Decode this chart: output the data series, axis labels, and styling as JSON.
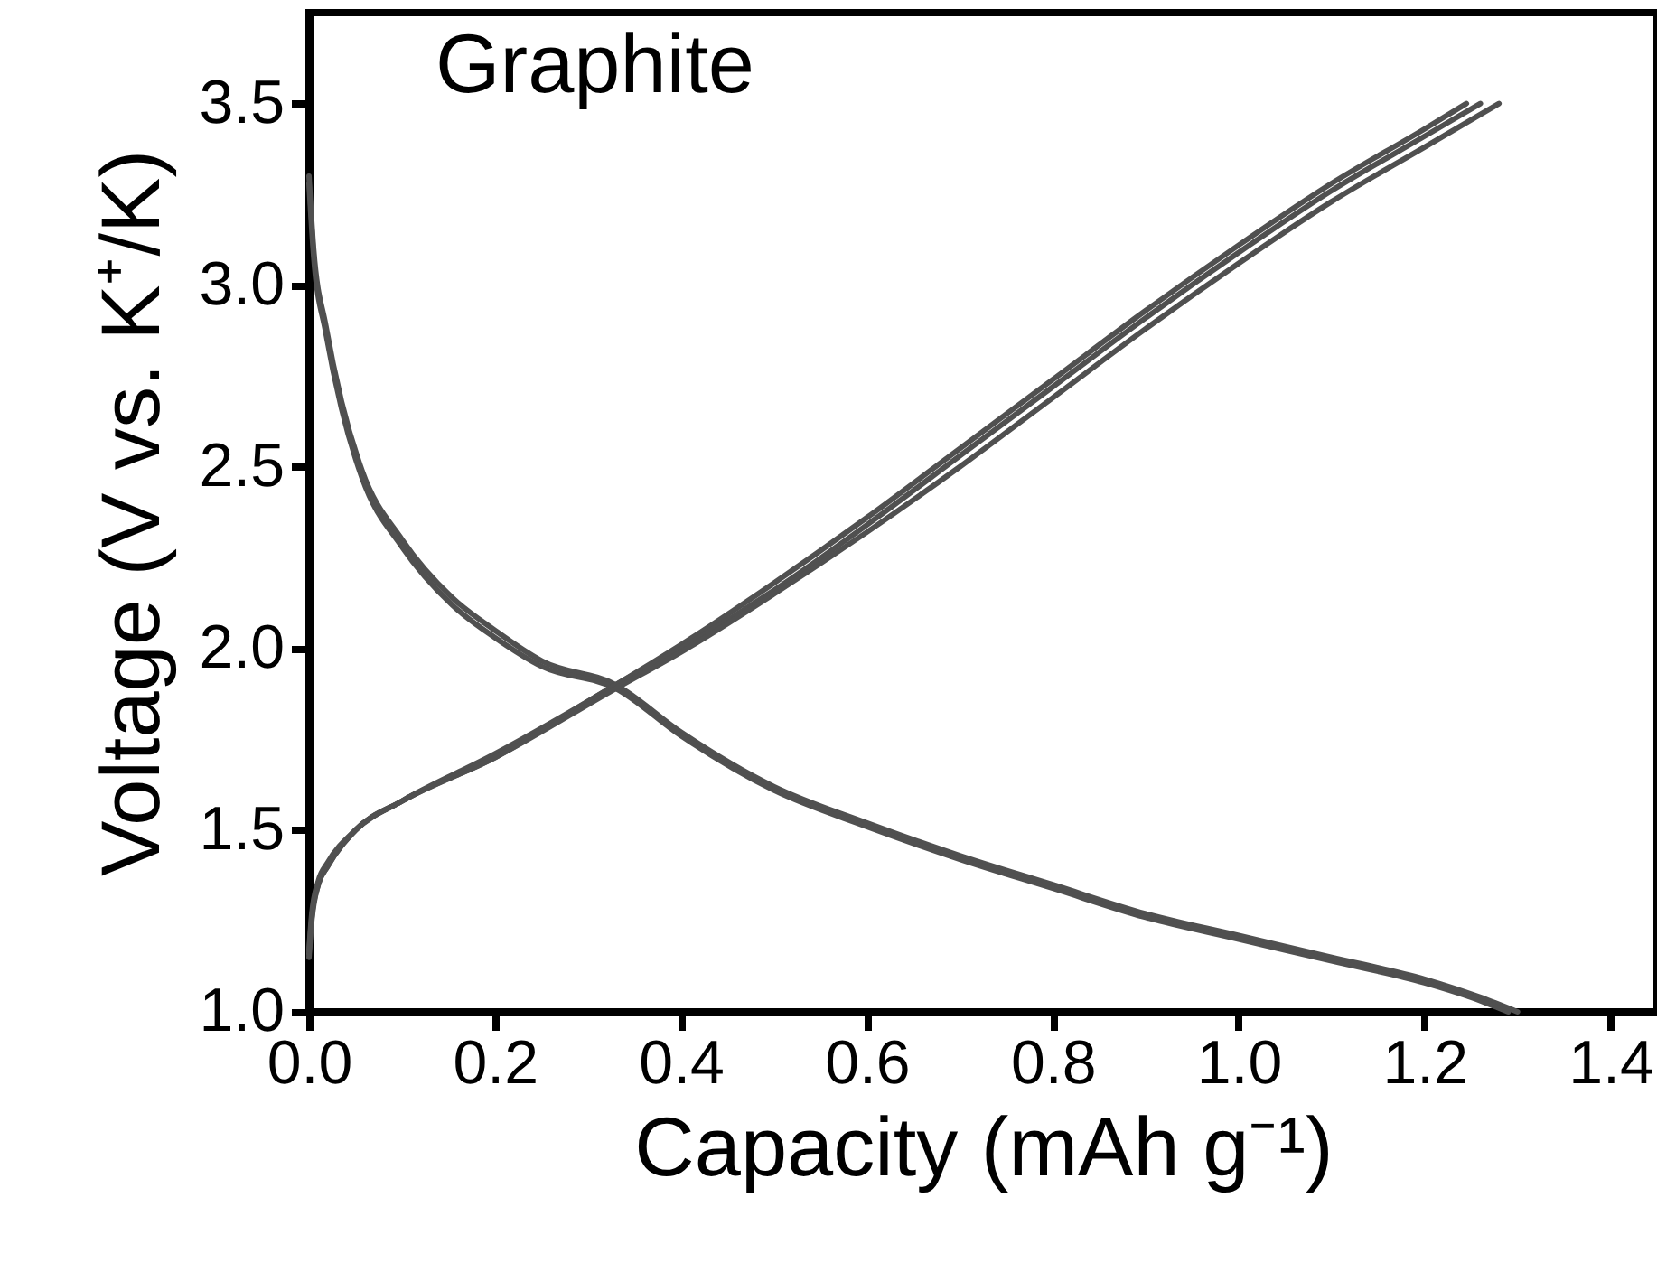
{
  "chart_data": {
    "type": "line",
    "xlabel": "Capacity (mAh g⁻¹)",
    "ylabel": "Voltage (V vs. K⁺/K)",
    "annotations": [
      "Graphite"
    ],
    "xlim": [
      0,
      1.45
    ],
    "ylim": [
      1.0,
      3.75
    ],
    "xticks": [
      {
        "value": 0,
        "label": "0.0"
      },
      {
        "value": 0.2,
        "label": "0.2"
      },
      {
        "value": 0.4,
        "label": "0.4"
      },
      {
        "value": 0.6,
        "label": "0.6"
      },
      {
        "value": 0.8,
        "label": "0.8"
      },
      {
        "value": 1,
        "label": "1.0"
      },
      {
        "value": 1.2,
        "label": "1.2"
      },
      {
        "value": 1.4,
        "label": "1.4"
      }
    ],
    "yticks": [
      {
        "value": 1,
        "label": "1.0"
      },
      {
        "value": 1.5,
        "label": "1.5"
      },
      {
        "value": 2,
        "label": "2.0"
      },
      {
        "value": 2.5,
        "label": "2.5"
      },
      {
        "value": 3,
        "label": "3.0"
      },
      {
        "value": 3.5,
        "label": "3.5"
      }
    ],
    "grid": false,
    "marker": "none",
    "line_style": "solid",
    "series": [
      {
        "color": "#505050",
        "x": [
          0,
          0.005,
          0.018,
          0.035,
          0.057,
          0.1,
          0.154,
          0.2,
          0.251,
          0.33,
          0.4,
          0.5,
          0.6,
          0.7,
          0.8,
          0.9,
          1.0,
          1.1,
          1.2,
          1.26,
          1.3
        ],
        "values": [
          3.3,
          3.1,
          2.89,
          2.68,
          2.49,
          2.3,
          2.14,
          2.05,
          1.965,
          1.9,
          1.77,
          1.62,
          1.52,
          1.43,
          1.35,
          1.27,
          1.21,
          1.15,
          1.09,
          1.04,
          1.0
        ]
      },
      {
        "color": "#505050",
        "x": [
          0,
          0.005,
          0.018,
          0.035,
          0.057,
          0.1,
          0.154,
          0.2,
          0.251,
          0.33,
          0.4,
          0.5,
          0.6,
          0.7,
          0.8,
          0.9,
          1.0,
          1.1,
          1.2,
          1.25,
          1.29
        ],
        "values": [
          3.28,
          3.08,
          2.87,
          2.66,
          2.47,
          2.28,
          2.12,
          2.03,
          1.95,
          1.89,
          1.76,
          1.61,
          1.51,
          1.42,
          1.34,
          1.26,
          1.2,
          1.14,
          1.08,
          1.04,
          1.0
        ]
      },
      {
        "color": "#505050",
        "x": [
          0,
          0.003,
          0.01,
          0.02,
          0.05,
          0.1,
          0.2,
          0.33,
          0.4,
          0.5,
          0.6,
          0.7,
          0.8,
          0.9,
          1.0,
          1.1,
          1.2,
          1.245
        ],
        "values": [
          1.15,
          1.25,
          1.35,
          1.4,
          1.5,
          1.58,
          1.71,
          1.9,
          2.01,
          2.18,
          2.36,
          2.55,
          2.74,
          2.93,
          3.11,
          3.28,
          3.43,
          3.5
        ]
      },
      {
        "color": "#505050",
        "x": [
          0,
          0.003,
          0.01,
          0.02,
          0.05,
          0.1,
          0.2,
          0.33,
          0.4,
          0.5,
          0.6,
          0.7,
          0.8,
          0.9,
          1.0,
          1.1,
          1.2,
          1.26
        ],
        "values": [
          1.16,
          1.26,
          1.35,
          1.4,
          1.5,
          1.58,
          1.7,
          1.9,
          2.0,
          2.16,
          2.34,
          2.53,
          2.72,
          2.91,
          3.09,
          3.26,
          3.41,
          3.5
        ]
      },
      {
        "color": "#505050",
        "x": [
          0,
          0.003,
          0.01,
          0.02,
          0.05,
          0.1,
          0.2,
          0.33,
          0.4,
          0.5,
          0.6,
          0.7,
          0.8,
          0.9,
          1.0,
          1.1,
          1.2,
          1.28
        ],
        "values": [
          1.17,
          1.27,
          1.36,
          1.41,
          1.5,
          1.58,
          1.7,
          1.89,
          1.99,
          2.15,
          2.32,
          2.5,
          2.69,
          2.88,
          3.06,
          3.23,
          3.38,
          3.5
        ]
      }
    ]
  }
}
